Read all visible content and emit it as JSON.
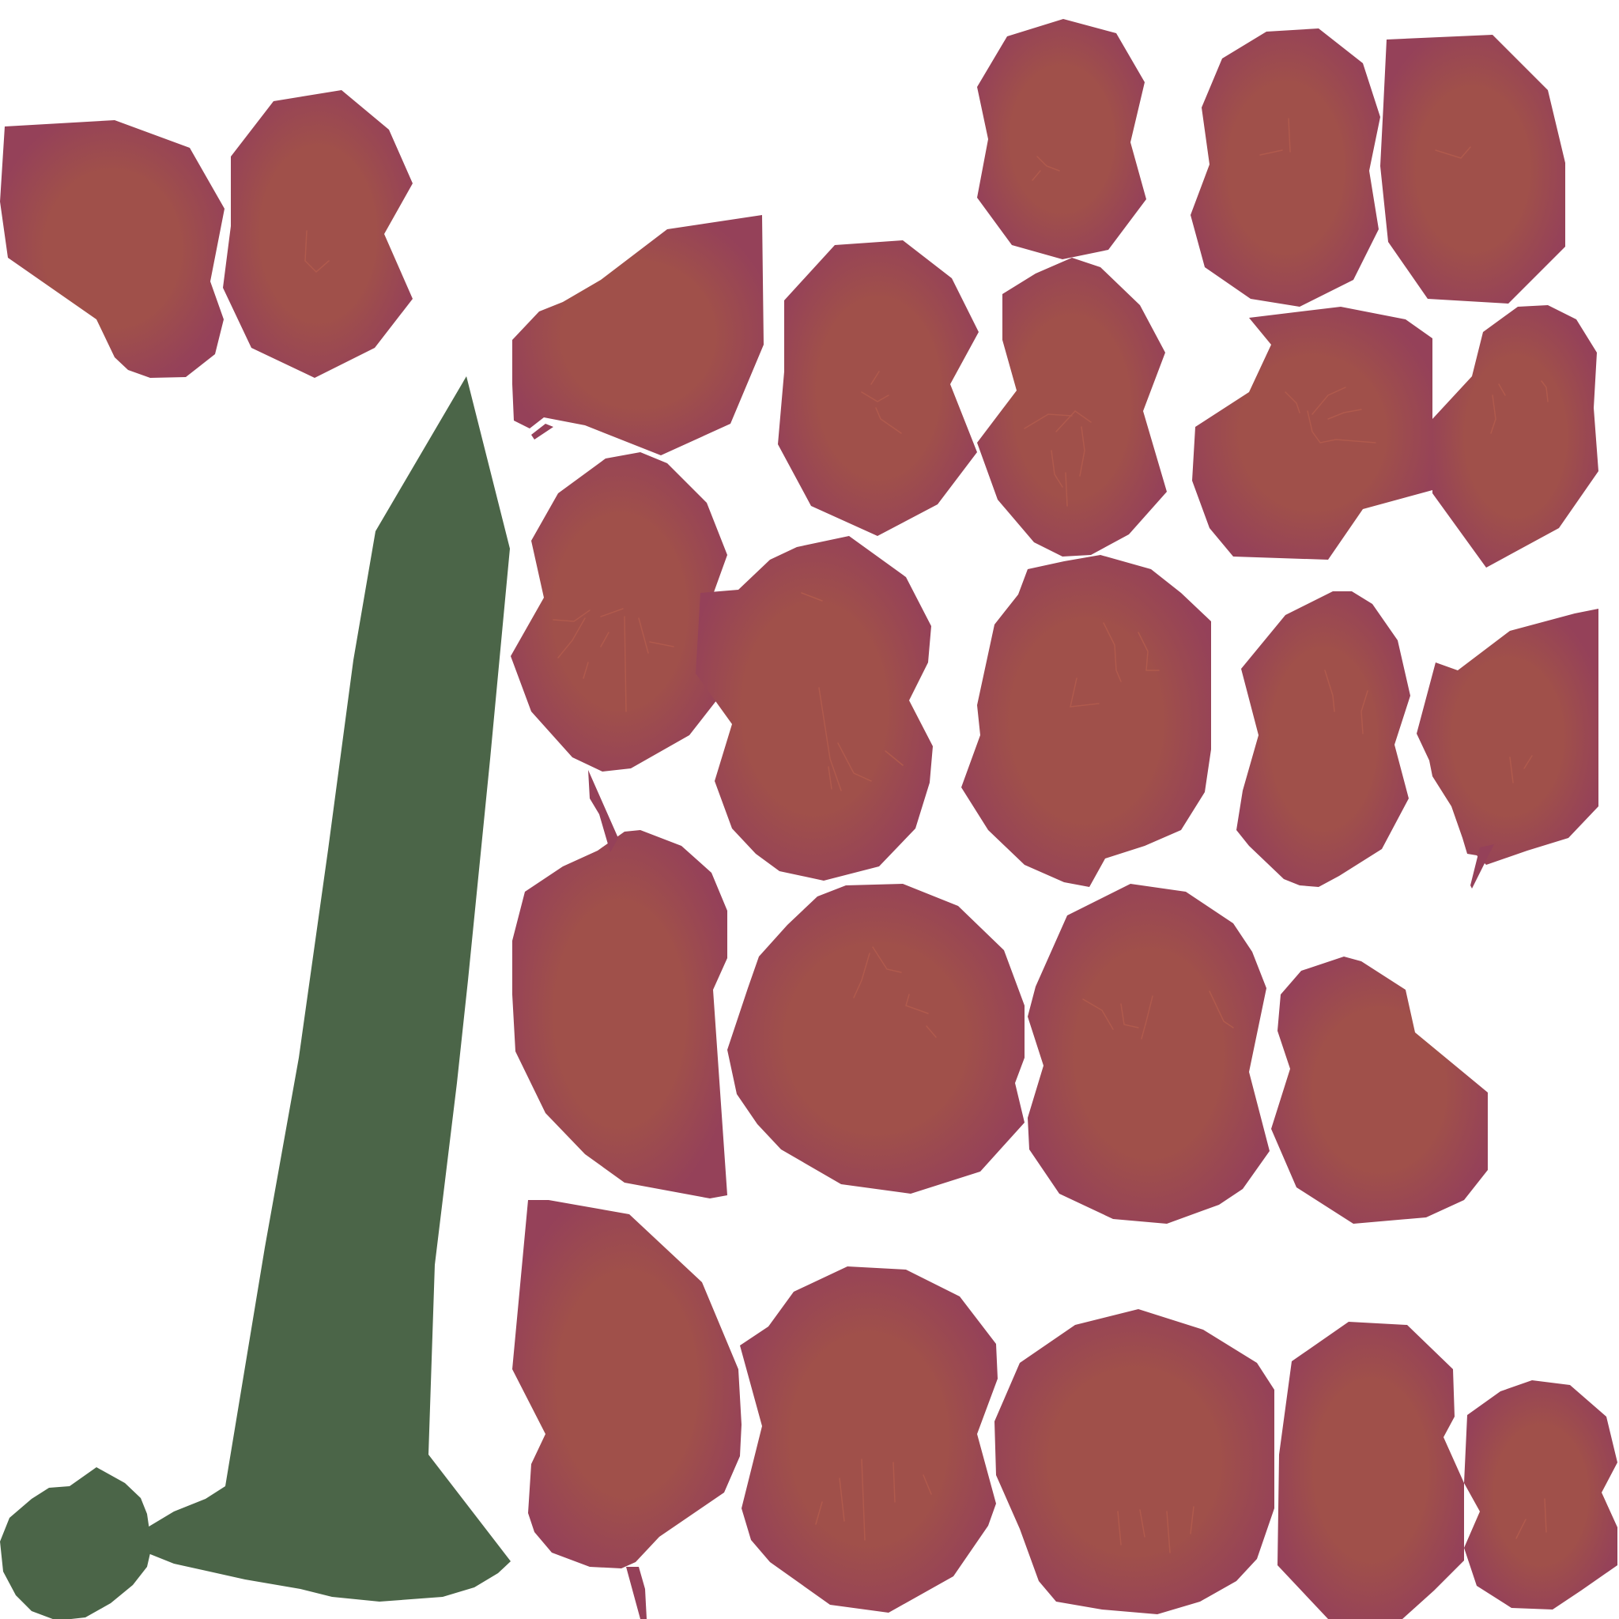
{
  "colors": {
    "background": "#ffffff",
    "stem": "#4b6548",
    "petal_edge": "#954159",
    "petal_center": "#a0504a",
    "vein": "#b05a4d"
  },
  "atlas": {
    "stem_count": 1,
    "petal_count": 32
  }
}
